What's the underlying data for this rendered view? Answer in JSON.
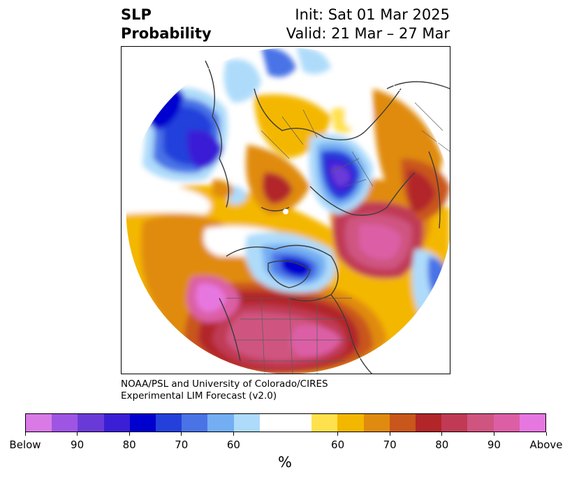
{
  "title": {
    "line1": "SLP",
    "line2": "Probability"
  },
  "init": {
    "line1": "Init: Sat 01 Mar 2025",
    "line2": "Valid: 21 Mar – 27 Mar"
  },
  "credit": {
    "line1": "NOAA/PSL and University of Colorado/CIRES",
    "line2": "Experimental LIM Forecast (v2.0)"
  },
  "colorbar": {
    "colors": [
      "#d97ae6",
      "#9f55e3",
      "#6a3ad8",
      "#3a1fd6",
      "#0000cf",
      "#2340db",
      "#4a73e6",
      "#73aef2",
      "#aedbfa",
      "#ffffff",
      "#ffffff",
      "#ffe14d",
      "#f4b700",
      "#e08b0f",
      "#c9561b",
      "#b22529",
      "#c03a55",
      "#cf5480",
      "#dc5fa6",
      "#e777e0"
    ],
    "labels": [
      "Below",
      "90",
      "80",
      "70",
      "60",
      "60",
      "70",
      "80",
      "90",
      "Above"
    ],
    "unit": "%"
  },
  "map": {
    "projection": "north-polar-stereographic",
    "variable": "sea-level-pressure-tercile-probability",
    "features": [
      "north-america-above-normal",
      "north-pacific-above-normal",
      "north-atlantic-above-normal",
      "hudson-bay-below-normal",
      "scandinavia-russia-below-normal",
      "siberia-below-normal",
      "arctic-above-normal"
    ]
  }
}
